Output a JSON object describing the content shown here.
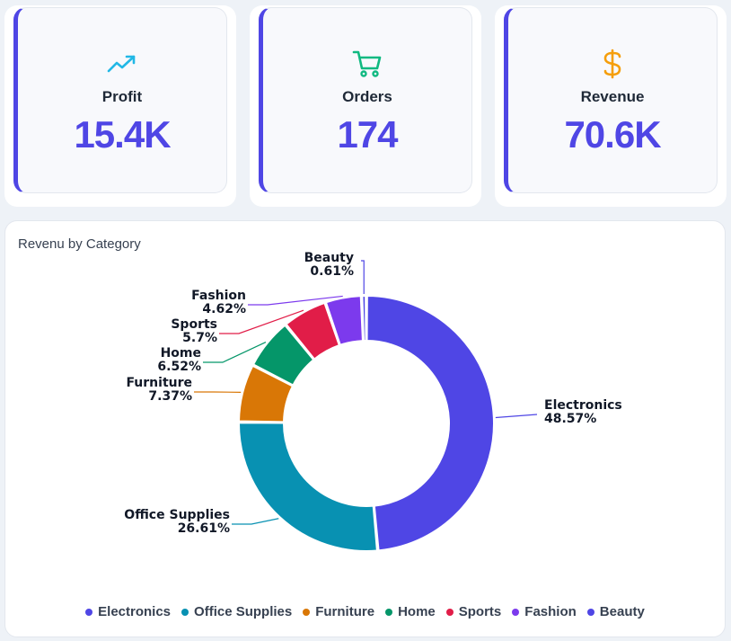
{
  "kpis": [
    {
      "label": "Profit",
      "value": "15.4K",
      "icon": "trending-up-icon",
      "icon_color": "#22b8e6"
    },
    {
      "label": "Orders",
      "value": "174",
      "icon": "shopping-cart-icon",
      "icon_color": "#10b981"
    },
    {
      "label": "Revenue",
      "value": "70.6K",
      "icon": "dollar-icon",
      "icon_color": "#f59e0b"
    }
  ],
  "accent": "#4f46e5",
  "chart_data": {
    "type": "pie",
    "title": "Revenu by Category",
    "donut": true,
    "legend_position": "bottom",
    "categories": [
      "Electronics",
      "Office Supplies",
      "Furniture",
      "Home",
      "Sports",
      "Fashion",
      "Beauty"
    ],
    "values": [
      48.57,
      26.61,
      7.37,
      6.52,
      5.7,
      4.62,
      0.61
    ],
    "value_labels": [
      "48.57%",
      "26.61%",
      "7.37%",
      "6.52%",
      "5.7%",
      "4.62%",
      "0.61%"
    ],
    "colors": [
      "#4f46e5",
      "#0891b2",
      "#d97706",
      "#059669",
      "#e11d48",
      "#7c3aed",
      "#4f46e5"
    ]
  }
}
